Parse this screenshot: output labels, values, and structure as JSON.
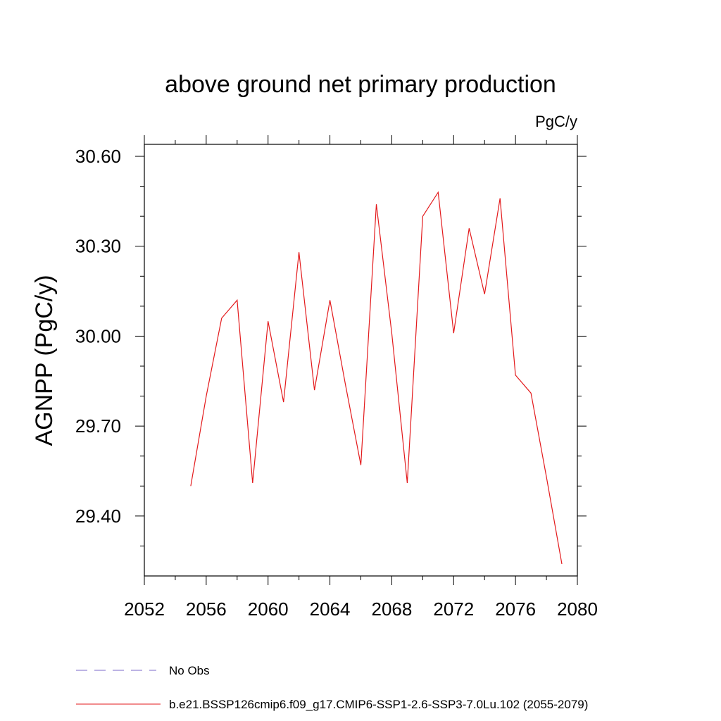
{
  "chart_data": {
    "type": "line",
    "title": "above ground net primary production",
    "units": "PgC/y",
    "ylabel": "AGNPP  (PgC/y)",
    "xlabel": "",
    "xlim": [
      2052,
      2080
    ],
    "ylim": [
      29.2,
      30.64
    ],
    "x_ticks": [
      2052,
      2056,
      2060,
      2064,
      2068,
      2072,
      2076,
      2080
    ],
    "x_tick_labels": [
      "2052",
      "2056",
      "2060",
      "2064",
      "2068",
      "2072",
      "2076",
      "2080"
    ],
    "y_ticks": [
      29.4,
      29.7,
      30.0,
      30.3,
      30.6
    ],
    "y_tick_labels": [
      "29.40",
      "29.70",
      "30.00",
      "30.30",
      "30.60"
    ],
    "y_minor_step": 0.1,
    "x_minor_step": 2,
    "grid": false,
    "legend_position": "bottom",
    "legend": [
      {
        "label": "No Obs",
        "color": "#7b68c8",
        "style": "dashed"
      },
      {
        "label": "b.e21.BSSP126cmip6.f09_g17.CMIP6-SSP1-2.6-SSP3-7.0Lu.102 (2055-2079)",
        "color": "#e31a1c",
        "style": "solid"
      }
    ],
    "series": [
      {
        "name": "b.e21.BSSP126cmip6.f09_g17.CMIP6-SSP1-2.6-SSP3-7.0Lu.102 (2055-2079)",
        "color": "#e31a1c",
        "x": [
          2055,
          2056,
          2057,
          2058,
          2059,
          2060,
          2061,
          2062,
          2063,
          2064,
          2065,
          2066,
          2067,
          2068,
          2069,
          2070,
          2071,
          2072,
          2073,
          2074,
          2075,
          2076,
          2077,
          2078,
          2079
        ],
        "y": [
          29.5,
          29.8,
          30.06,
          30.12,
          29.51,
          30.05,
          29.78,
          30.28,
          29.82,
          30.12,
          29.84,
          29.57,
          30.44,
          30.01,
          29.51,
          30.4,
          30.48,
          30.01,
          30.36,
          30.14,
          30.46,
          29.87,
          29.81,
          29.53,
          29.24
        ]
      }
    ]
  }
}
